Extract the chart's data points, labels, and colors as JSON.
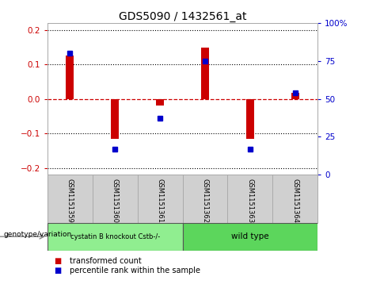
{
  "title": "GDS5090 / 1432561_at",
  "samples": [
    "GSM1151359",
    "GSM1151360",
    "GSM1151361",
    "GSM1151362",
    "GSM1151363",
    "GSM1151364"
  ],
  "bar_values": [
    0.125,
    -0.115,
    -0.02,
    0.148,
    -0.115,
    0.018
  ],
  "dot_values_pct": [
    80,
    17,
    37,
    75,
    17,
    54
  ],
  "bar_color": "#cc0000",
  "dot_color": "#0000cc",
  "ylim": [
    -0.22,
    0.22
  ],
  "y_ticks_left": [
    -0.2,
    -0.1,
    0.0,
    0.1,
    0.2
  ],
  "y_ticks_right": [
    0,
    25,
    50,
    75,
    100
  ],
  "ytick_right_labels": [
    "0",
    "25",
    "50",
    "75",
    "100%"
  ],
  "zero_line_color": "#cc0000",
  "grid_color": "#000000",
  "group1_label": "cystatin B knockout Cstb-/-",
  "group2_label": "wild type",
  "group1_color": "#90ee90",
  "group2_color": "#5cd65c",
  "group1_indices": [
    0,
    1,
    2
  ],
  "group2_indices": [
    3,
    4,
    5
  ],
  "genotype_label": "genotype/variation",
  "legend_bar_label": "transformed count",
  "legend_dot_label": "percentile rank within the sample",
  "background_color": "#ffffff",
  "plot_bg_color": "#ffffff",
  "sample_box_color": "#d0d0d0"
}
